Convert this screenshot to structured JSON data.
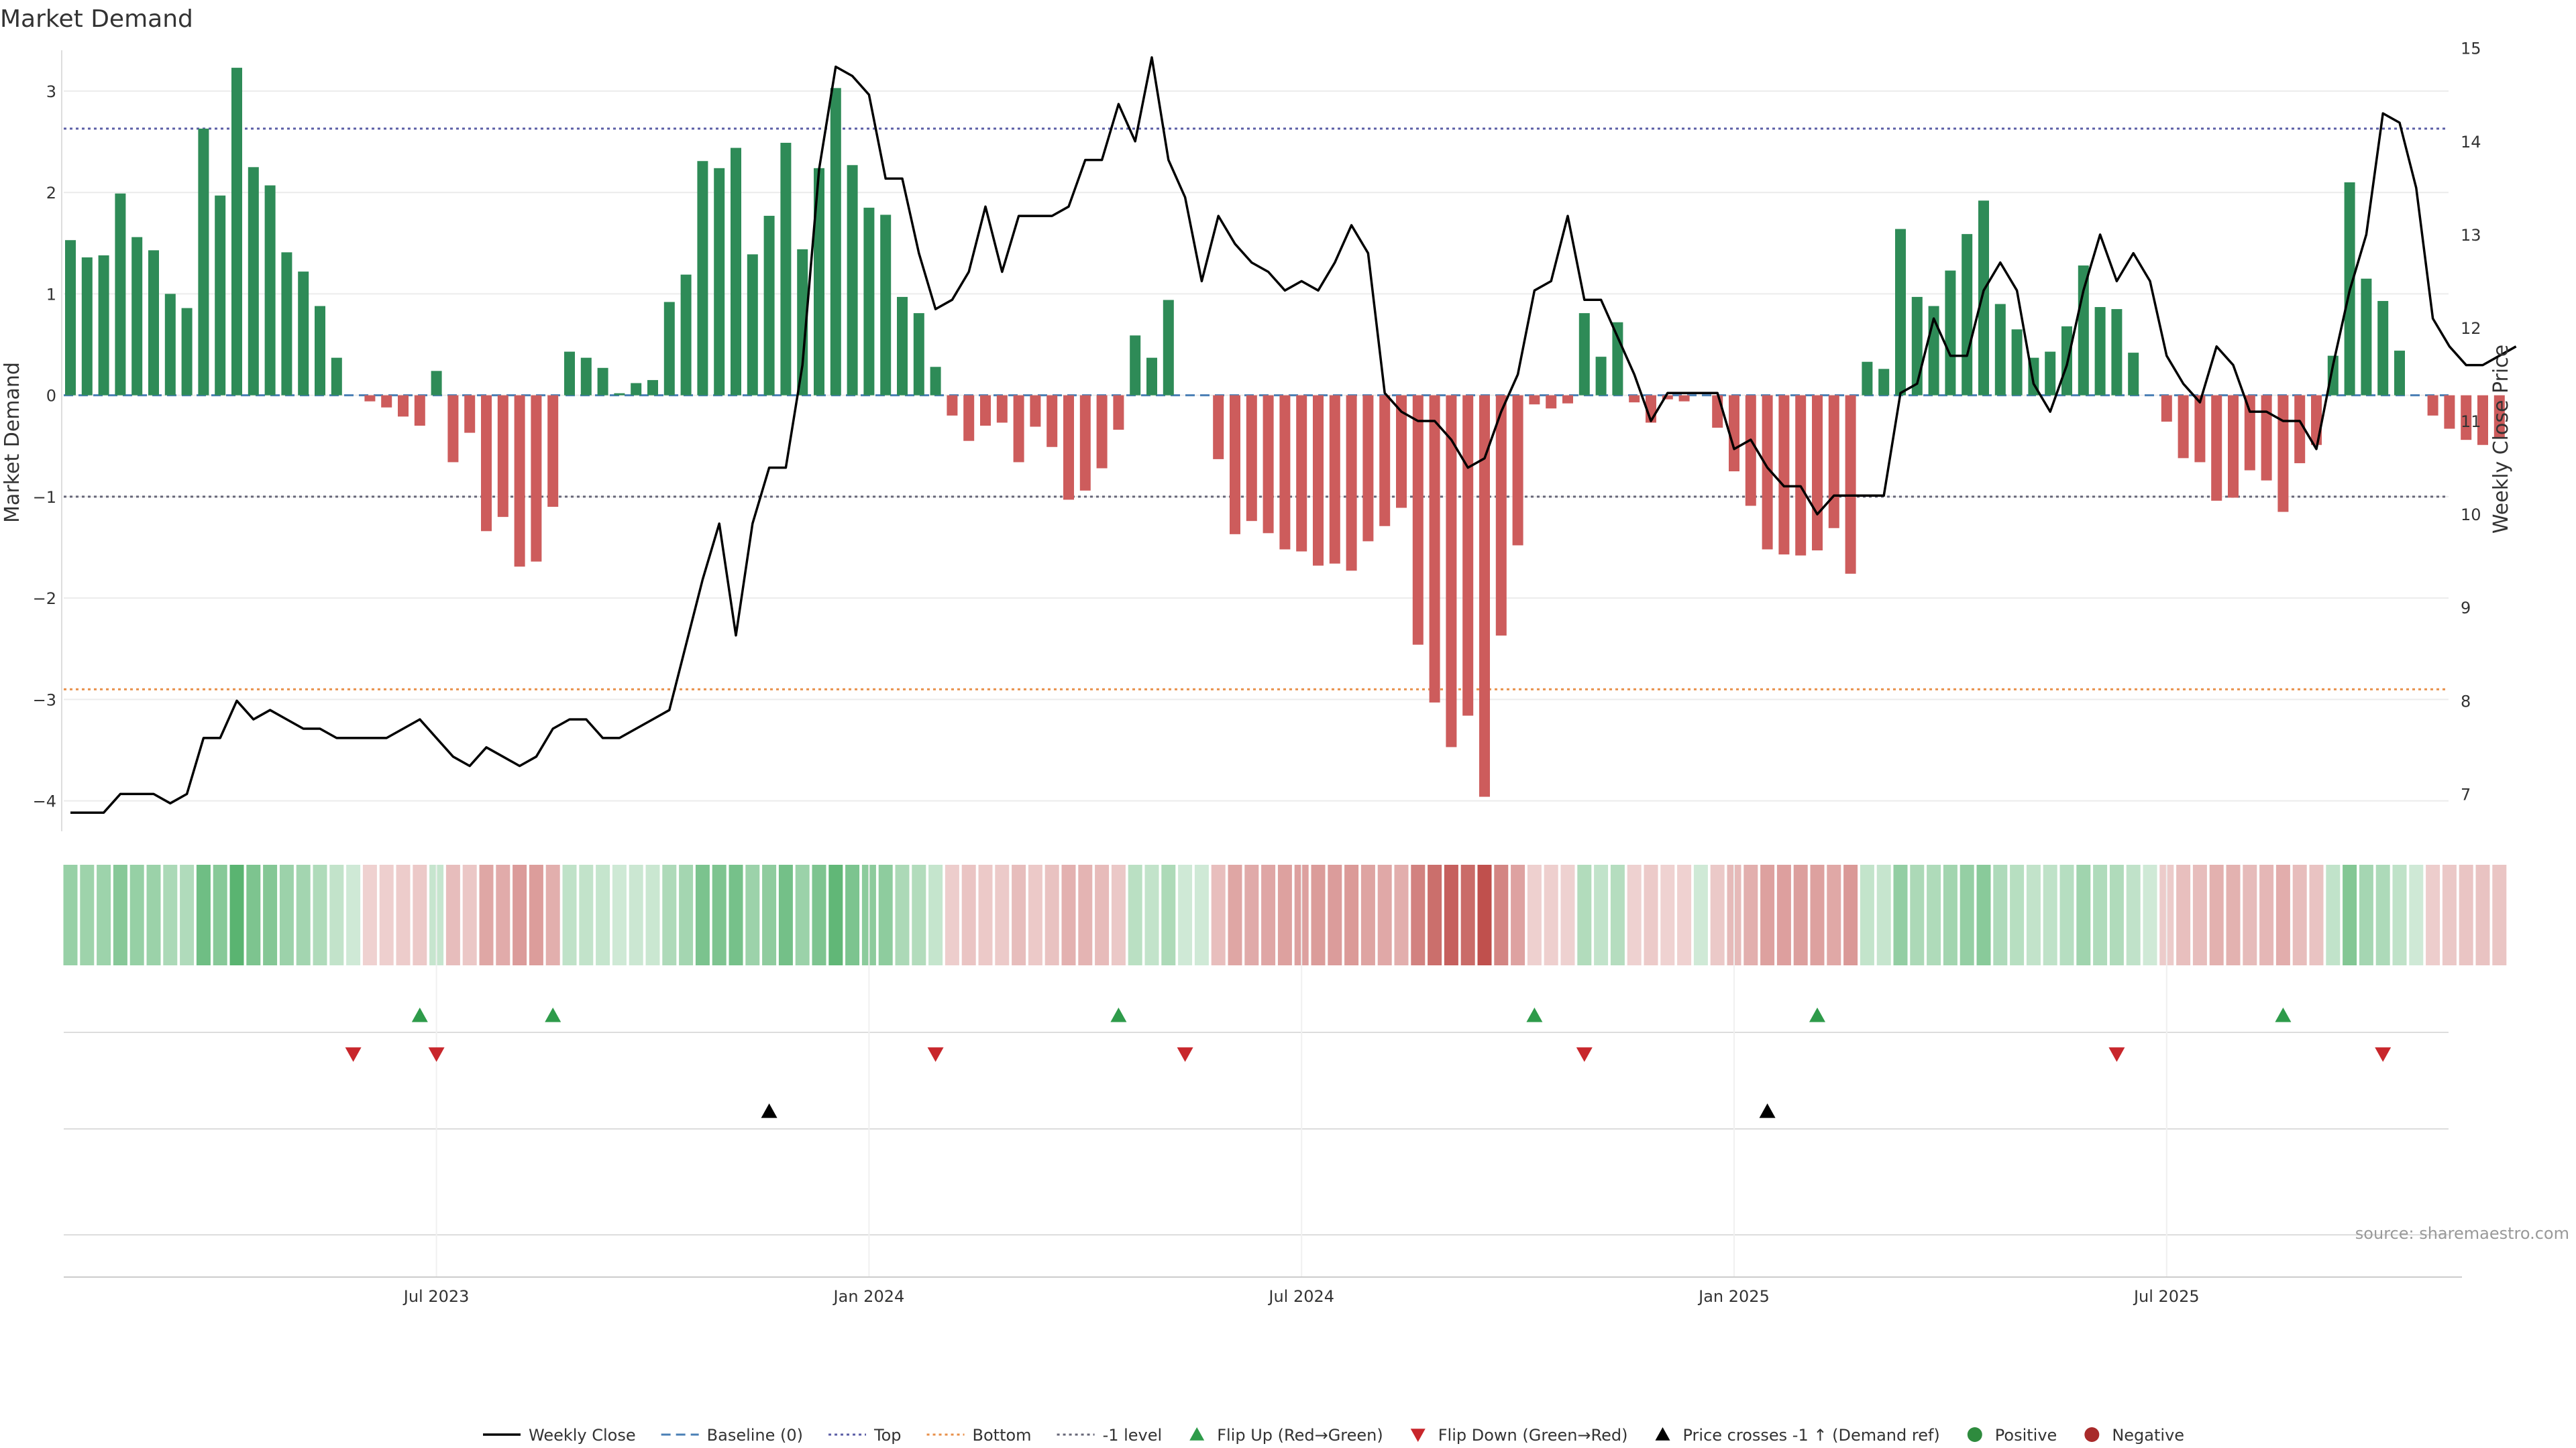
{
  "chart_data": {
    "type": "bar",
    "title": "Market Demand",
    "ylabel": "Market Demand",
    "y2label": "Weekly Close Price",
    "ylim": [
      -4.3,
      3.7
    ],
    "y2lim": [
      6.6,
      15.3
    ],
    "yticks": [
      3,
      2,
      1,
      0,
      -1,
      -2,
      -3,
      -4
    ],
    "y2ticks": [
      15,
      14,
      13,
      12,
      11,
      10,
      9,
      8,
      7
    ],
    "xticks": [
      {
        "label": "Jul 2023",
        "week": 22
      },
      {
        "label": "Jan 2024",
        "week": 48
      },
      {
        "label": "Jul 2024",
        "week": 74
      },
      {
        "label": "Jan 2025",
        "week": 100
      },
      {
        "label": "Jul 2025",
        "week": 126
      }
    ],
    "reference_lines": {
      "top": 2.63,
      "bottom": -2.9,
      "minus_one": -1,
      "baseline": 0
    },
    "series": [
      {
        "name": "Market Demand",
        "values": [
          1.53,
          1.36,
          1.38,
          1.99,
          1.56,
          1.43,
          1.0,
          0.86,
          2.63,
          1.97,
          3.23,
          2.25,
          2.07,
          1.41,
          1.22,
          0.88,
          0.37,
          0,
          -0.06,
          -0.12,
          -0.21,
          -0.3,
          0.24,
          -0.66,
          -0.37,
          -1.34,
          -1.2,
          -1.69,
          -1.64,
          -1.1,
          0.43,
          0.37,
          0.27,
          0.02,
          0.12,
          0.15,
          0.92,
          1.19,
          2.31,
          2.24,
          2.44,
          1.39,
          1.77,
          2.49,
          1.44,
          2.24,
          3.03,
          2.27,
          1.85,
          1.78,
          0.97,
          0.81,
          0.28,
          -0.2,
          -0.45,
          -0.3,
          -0.27,
          -0.66,
          -0.31,
          -0.51,
          -1.03,
          -0.94,
          -0.72,
          -0.34,
          0.59,
          0.37,
          0.94,
          0,
          0,
          -0.63,
          -1.37,
          -1.24,
          -1.36,
          -1.52,
          -1.54,
          -1.68,
          -1.66,
          -1.73,
          -1.44,
          -1.29,
          -1.11,
          -2.46,
          -3.03,
          -3.47,
          -3.16,
          -3.96,
          -2.37,
          -1.48,
          -0.09,
          -0.13,
          -0.08,
          0.81,
          0.38,
          0.72,
          -0.07,
          -0.27,
          -0.04,
          -0.06,
          0,
          -0.32,
          -0.75,
          -1.09,
          -1.52,
          -1.57,
          -1.58,
          -1.53,
          -1.31,
          -1.76,
          0.33,
          0.26,
          1.64,
          0.97,
          0.88,
          1.23,
          1.59,
          1.92,
          0.9,
          0.65,
          0.37,
          0.43,
          0.68,
          1.28,
          0.87,
          0.85,
          0.42,
          0,
          -0.26,
          -0.62,
          -0.66,
          -1.04,
          -1.01,
          -0.74,
          -0.84,
          -1.15,
          -0.67,
          -0.49,
          0.39,
          2.1,
          1.15,
          0.93,
          0.44,
          0,
          -0.2,
          -0.33,
          -0.44,
          -0.49,
          -0.42
        ]
      },
      {
        "name": "Weekly Close",
        "values": [
          6.8,
          6.8,
          6.8,
          7.0,
          7.0,
          7.0,
          6.9,
          7.0,
          7.6,
          7.6,
          8.0,
          7.8,
          7.9,
          7.8,
          7.7,
          7.7,
          7.6,
          7.6,
          7.6,
          7.6,
          7.7,
          7.8,
          7.6,
          7.4,
          7.3,
          7.5,
          7.4,
          7.3,
          7.4,
          7.7,
          7.8,
          7.8,
          7.6,
          7.6,
          7.7,
          7.8,
          7.9,
          8.6,
          9.3,
          9.9,
          8.7,
          9.9,
          10.5,
          10.5,
          11.6,
          13.7,
          14.8,
          14.7,
          14.5,
          13.6,
          13.6,
          12.8,
          12.2,
          12.3,
          12.6,
          13.3,
          12.6,
          13.2,
          13.2,
          13.2,
          13.3,
          13.8,
          13.8,
          14.4,
          14.0,
          14.9,
          13.8,
          13.4,
          12.5,
          13.2,
          12.9,
          12.7,
          12.6,
          12.4,
          12.5,
          12.4,
          12.7,
          13.1,
          12.8,
          11.3,
          11.1,
          11.0,
          11.0,
          10.8,
          10.5,
          10.6,
          11.1,
          11.5,
          12.4,
          12.5,
          13.2,
          12.3,
          12.3,
          11.9,
          11.5,
          11.0,
          11.3,
          11.3,
          11.3,
          11.3,
          10.7,
          10.8,
          10.5,
          10.3,
          10.3,
          10.0,
          10.2,
          10.2,
          10.2,
          10.2,
          11.3,
          11.4,
          12.1,
          11.7,
          11.7,
          12.4,
          12.7,
          12.4,
          11.4,
          11.1,
          11.6,
          12.4,
          13.0,
          12.5,
          12.8,
          12.5,
          11.7,
          11.4,
          11.2,
          11.8,
          11.6,
          11.1,
          11.1,
          11.0,
          11.0,
          10.7,
          11.6,
          12.4,
          13.0,
          14.3,
          14.2,
          13.5,
          12.1,
          11.8,
          11.6,
          11.6,
          11.7,
          11.8
        ]
      }
    ],
    "regime_strip": {
      "legend": [
        "Positive",
        "Negative"
      ]
    },
    "events": {
      "flip_up_weeks": [
        21,
        29,
        63,
        88,
        105,
        133
      ],
      "flip_down_weeks": [
        17,
        22,
        52,
        67,
        91,
        123,
        139
      ],
      "price_cross_weeks": [
        42,
        102
      ]
    },
    "legend": [
      {
        "label": "Weekly Close",
        "marker": "line",
        "color": "#000000"
      },
      {
        "label": "Baseline (0)",
        "marker": "dash",
        "color": "#4a7fb5"
      },
      {
        "label": "Top",
        "marker": "dot",
        "color": "#5b5ea6"
      },
      {
        "label": "Bottom",
        "marker": "dot",
        "color": "#e8904a"
      },
      {
        "label": "-1 level",
        "marker": "dot",
        "color": "#666677"
      },
      {
        "label": "Flip Up (Red→Green)",
        "marker": "tri-up",
        "color": "#2e9b4a"
      },
      {
        "label": "Flip Down (Green→Red)",
        "marker": "tri-down",
        "color": "#c8262b"
      },
      {
        "label": "Price crosses -1 ↑ (Demand ref)",
        "marker": "tri-up",
        "color": "#000000"
      },
      {
        "label": "Positive",
        "marker": "circle",
        "color": "#2e8b3e"
      },
      {
        "label": "Negative",
        "marker": "circle",
        "color": "#a82a2a"
      }
    ],
    "source": "source: sharemaestro.com"
  },
  "colors": {
    "positive_bar": "#2e8b57",
    "negative_bar": "#cd5c5c",
    "price_line": "#000000"
  }
}
